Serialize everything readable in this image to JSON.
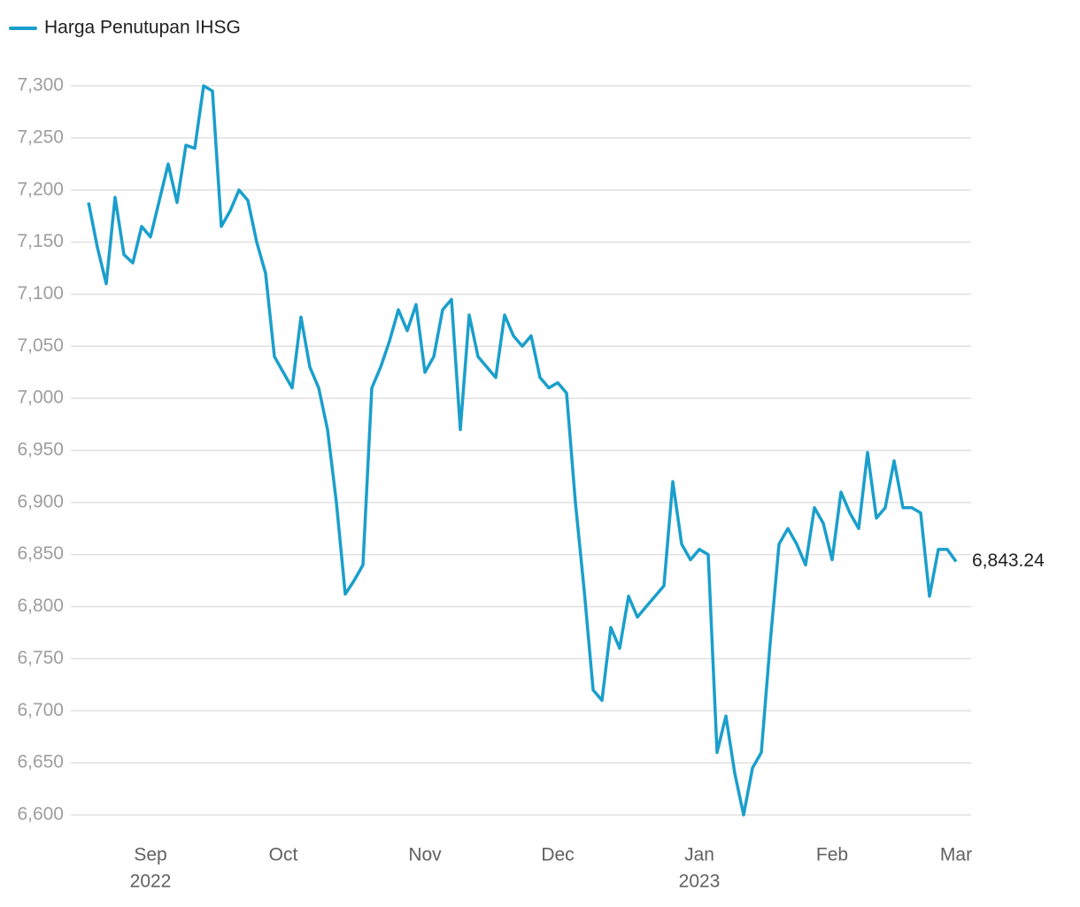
{
  "chart_data": {
    "type": "line",
    "categories": [
      null,
      null,
      null,
      null,
      null,
      null,
      null,
      "Sep",
      null,
      null,
      null,
      null,
      null,
      null,
      null,
      null,
      null,
      null,
      null,
      null,
      null,
      null,
      "Oct",
      null,
      null,
      null,
      null,
      null,
      null,
      null,
      null,
      null,
      null,
      null,
      null,
      null,
      null,
      null,
      "Nov",
      null,
      null,
      null,
      null,
      null,
      null,
      null,
      null,
      null,
      null,
      null,
      null,
      null,
      null,
      "Dec",
      null,
      null,
      null,
      null,
      null,
      null,
      null,
      null,
      null,
      null,
      null,
      null,
      null,
      null,
      null,
      "Jan",
      null,
      null,
      null,
      null,
      null,
      null,
      null,
      null,
      null,
      null,
      null,
      null,
      null,
      null,
      "Feb",
      null,
      null,
      null,
      null,
      null,
      null,
      null,
      null,
      null,
      null,
      null,
      null,
      null,
      "Mar"
    ],
    "category_sublabels": [
      null,
      null,
      null,
      null,
      null,
      null,
      null,
      "2022",
      null,
      null,
      null,
      null,
      null,
      null,
      null,
      null,
      null,
      null,
      null,
      null,
      null,
      null,
      null,
      null,
      null,
      null,
      null,
      null,
      null,
      null,
      null,
      null,
      null,
      null,
      null,
      null,
      null,
      null,
      null,
      null,
      null,
      null,
      null,
      null,
      null,
      null,
      null,
      null,
      null,
      null,
      null,
      null,
      null,
      null,
      null,
      null,
      null,
      null,
      null,
      null,
      null,
      null,
      null,
      null,
      null,
      null,
      null,
      null,
      null,
      "2023",
      null,
      null,
      null,
      null,
      null,
      null,
      null,
      null,
      null,
      null,
      null,
      null,
      null,
      null,
      null,
      null,
      null,
      null,
      null,
      null,
      null,
      null,
      null,
      null,
      null,
      null,
      null,
      null,
      null
    ],
    "series": [
      {
        "name": "Harga Penutupan IHSG",
        "color": "#1a9fcc",
        "values": [
          7188,
          7145,
          7110,
          7193,
          7138,
          7130,
          7165,
          7155,
          7190,
          7225,
          7188,
          7243,
          7240,
          7300,
          7295,
          7165,
          7180,
          7200,
          7190,
          7150,
          7120,
          7040,
          7025,
          7010,
          7078,
          7030,
          7010,
          6970,
          6900,
          6812,
          6825,
          6840,
          7010,
          7030,
          7055,
          7085,
          7065,
          7090,
          7025,
          7040,
          7085,
          7095,
          6970,
          7080,
          7040,
          7030,
          7020,
          7080,
          7060,
          7050,
          7060,
          7020,
          7010,
          7015,
          7005,
          6900,
          6815,
          6720,
          6710,
          6780,
          6760,
          6810,
          6790,
          6800,
          6810,
          6820,
          6920,
          6860,
          6845,
          6855,
          6850,
          6660,
          6695,
          6640,
          6600,
          6645,
          6660,
          6765,
          6860,
          6875,
          6860,
          6840,
          6895,
          6880,
          6845,
          6910,
          6890,
          6875,
          6948,
          6885,
          6895,
          6940,
          6895,
          6895,
          6890,
          6810,
          6855,
          6855,
          6843.24
        ],
        "value_labels": [
          null,
          null,
          null,
          null,
          null,
          null,
          null,
          null,
          null,
          null,
          null,
          null,
          null,
          null,
          null,
          null,
          null,
          null,
          null,
          null,
          null,
          null,
          null,
          null,
          null,
          null,
          null,
          null,
          null,
          null,
          null,
          null,
          null,
          null,
          null,
          null,
          null,
          null,
          null,
          null,
          null,
          null,
          null,
          null,
          null,
          null,
          null,
          null,
          null,
          null,
          null,
          null,
          null,
          null,
          null,
          null,
          null,
          null,
          null,
          null,
          null,
          null,
          null,
          null,
          null,
          null,
          null,
          null,
          null,
          null,
          null,
          null,
          null,
          null,
          null,
          null,
          null,
          null,
          null,
          null,
          null,
          null,
          null,
          null,
          null,
          null,
          null,
          null,
          null,
          null,
          null,
          null,
          null,
          null,
          null,
          null,
          null,
          null,
          "6,843.24"
        ]
      }
    ],
    "ylim": [
      6580,
      7320
    ],
    "yticks": [
      {
        "value": 6600,
        "label": "6,600"
      },
      {
        "value": 6650,
        "label": "6,650"
      },
      {
        "value": 6700,
        "label": "6,700"
      },
      {
        "value": 6750,
        "label": "6,750"
      },
      {
        "value": 6800,
        "label": "6,800"
      },
      {
        "value": 6850,
        "label": "6,850"
      },
      {
        "value": 6900,
        "label": "6,900"
      },
      {
        "value": 6950,
        "label": "6,950"
      },
      {
        "value": 7000,
        "label": "7,000"
      },
      {
        "value": 7050,
        "label": "7,050"
      },
      {
        "value": 7100,
        "label": "7,100"
      },
      {
        "value": 7150,
        "label": "7,150"
      },
      {
        "value": 7200,
        "label": "7,200"
      },
      {
        "value": 7250,
        "label": "7,250"
      },
      {
        "value": 7300,
        "label": "7,300"
      }
    ],
    "grid": true,
    "legend": "top-left"
  }
}
